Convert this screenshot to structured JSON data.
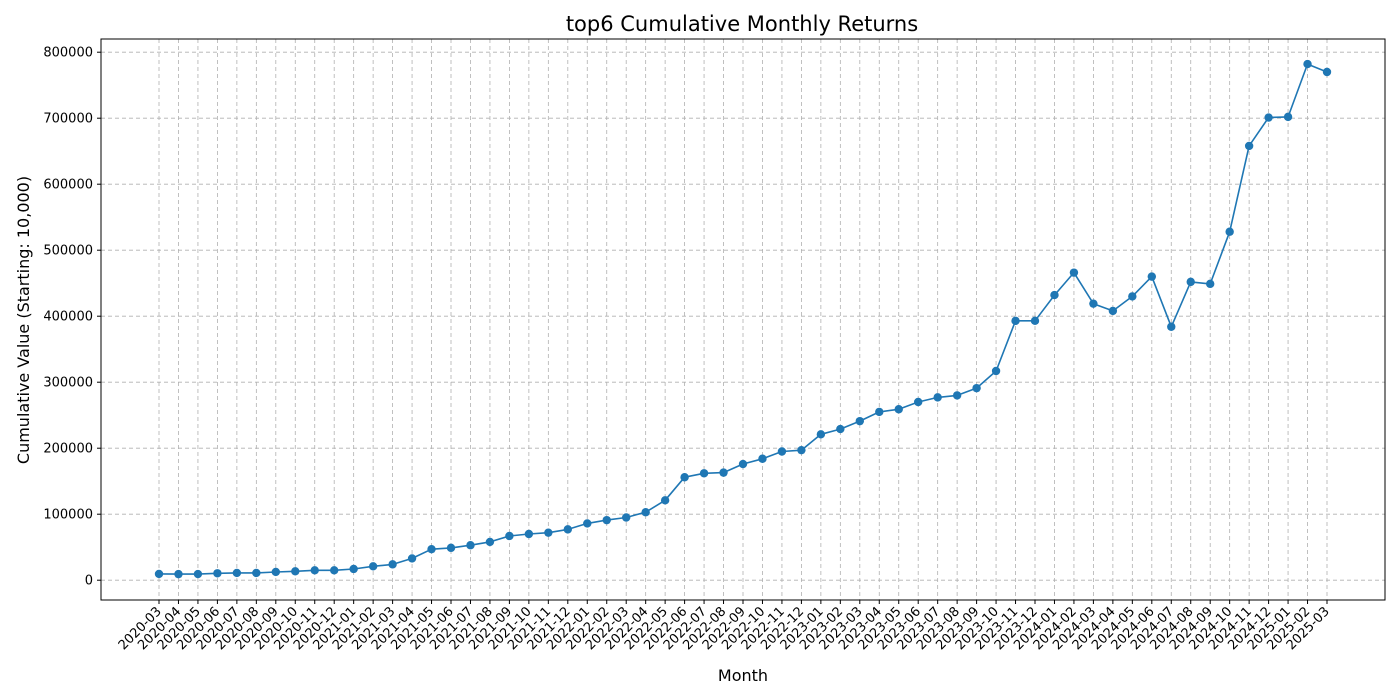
{
  "chart_data": {
    "type": "line",
    "title": "top6 Cumulative Monthly Returns",
    "xlabel": "Month",
    "ylabel": "Cumulative Value (Starting: 10,000)",
    "ylim": [
      -30000,
      820000
    ],
    "yticks": [
      0,
      100000,
      200000,
      300000,
      400000,
      500000,
      600000,
      700000,
      800000
    ],
    "grid": true,
    "color": "#1f77b4",
    "x": [
      "2020-03",
      "2020-04",
      "2020-05",
      "2020-06",
      "2020-07",
      "2020-08",
      "2020-09",
      "2020-10",
      "2020-11",
      "2020-12",
      "2021-01",
      "2021-02",
      "2021-03",
      "2021-04",
      "2021-05",
      "2021-06",
      "2021-07",
      "2021-08",
      "2021-09",
      "2021-10",
      "2021-11",
      "2021-12",
      "2022-01",
      "2022-02",
      "2022-03",
      "2022-04",
      "2022-05",
      "2022-06",
      "2022-07",
      "2022-08",
      "2022-09",
      "2022-10",
      "2022-11",
      "2022-12",
      "2023-01",
      "2023-02",
      "2023-03",
      "2023-04",
      "2023-05",
      "2023-06",
      "2023-07",
      "2023-08",
      "2023-09",
      "2023-10",
      "2023-11",
      "2023-12",
      "2024-01",
      "2024-02",
      "2024-03",
      "2024-04",
      "2024-05",
      "2024-06",
      "2024-07",
      "2024-08",
      "2024-09",
      "2024-10",
      "2024-11",
      "2024-12",
      "2025-01",
      "2025-02",
      "2025-03"
    ],
    "values": [
      9500,
      9200,
      9300,
      10500,
      11000,
      11000,
      12500,
      13500,
      15000,
      15000,
      17000,
      21000,
      24000,
      33000,
      47000,
      49000,
      53000,
      58000,
      67000,
      70000,
      72000,
      77000,
      86000,
      91000,
      95000,
      103000,
      121000,
      156000,
      162000,
      163000,
      176000,
      184000,
      195000,
      197000,
      221000,
      229000,
      241000,
      255000,
      259000,
      270000,
      277000,
      280000,
      291000,
      317000,
      393000,
      393000,
      432000,
      466000,
      419000,
      408000,
      430000,
      460000,
      384000,
      452000,
      449000,
      528000,
      658000,
      701000,
      702000,
      782000,
      770000
    ]
  }
}
